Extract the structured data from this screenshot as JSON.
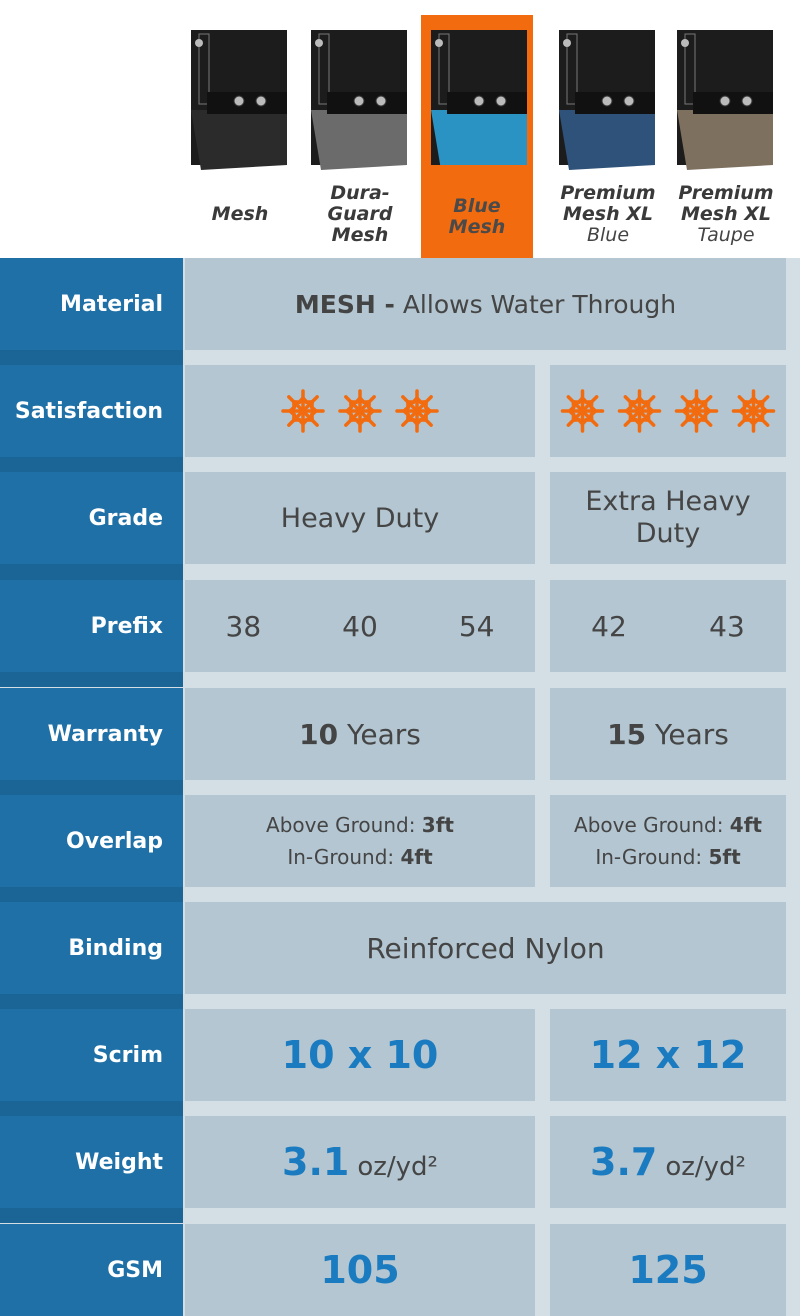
{
  "products": [
    {
      "name": "Mesh"
    },
    {
      "name": "Dura-Guard Mesh"
    },
    {
      "name": "Blue Mesh"
    },
    {
      "name": "Premium Mesh XL",
      "variant": "Blue"
    },
    {
      "name": "Premium Mesh XL",
      "variant": "Taupe"
    }
  ],
  "rows": {
    "material": {
      "label": "Material",
      "bold": "MESH -",
      "text": "Allows Water Through"
    },
    "satisfaction": {
      "label": "Satisfaction",
      "ratings": [
        3,
        4
      ]
    },
    "grade": {
      "label": "Grade",
      "cells": [
        "Heavy Duty",
        "Extra Heavy Duty"
      ]
    },
    "prefix": {
      "label": "Prefix",
      "cells": [
        [
          "38",
          "40",
          "54"
        ],
        [
          "42",
          "43"
        ]
      ]
    },
    "warranty": {
      "label": "Warranty",
      "cells": [
        {
          "number": "10",
          "unit": "Years"
        },
        {
          "number": "15",
          "unit": "Years"
        }
      ]
    },
    "overlap": {
      "label": "Overlap",
      "cells": [
        {
          "above_label": "Above Ground:",
          "above": "3ft",
          "in_label": "In-Ground:",
          "in": "4ft"
        },
        {
          "above_label": "Above Ground:",
          "above": "4ft",
          "in_label": "In-Ground:",
          "in": "5ft"
        }
      ]
    },
    "binding": {
      "label": "Binding",
      "text": "Reinforced Nylon"
    },
    "scrim": {
      "label": "Scrim",
      "cells": [
        "10 x 10",
        "12 x 12"
      ]
    },
    "weight": {
      "label": "Weight",
      "cells": [
        {
          "value": "3.1",
          "unit": "oz/yd²"
        },
        {
          "value": "3.7",
          "unit": "oz/yd²"
        }
      ]
    },
    "gsm": {
      "label": "GSM",
      "cells": [
        "105",
        "125"
      ]
    }
  }
}
